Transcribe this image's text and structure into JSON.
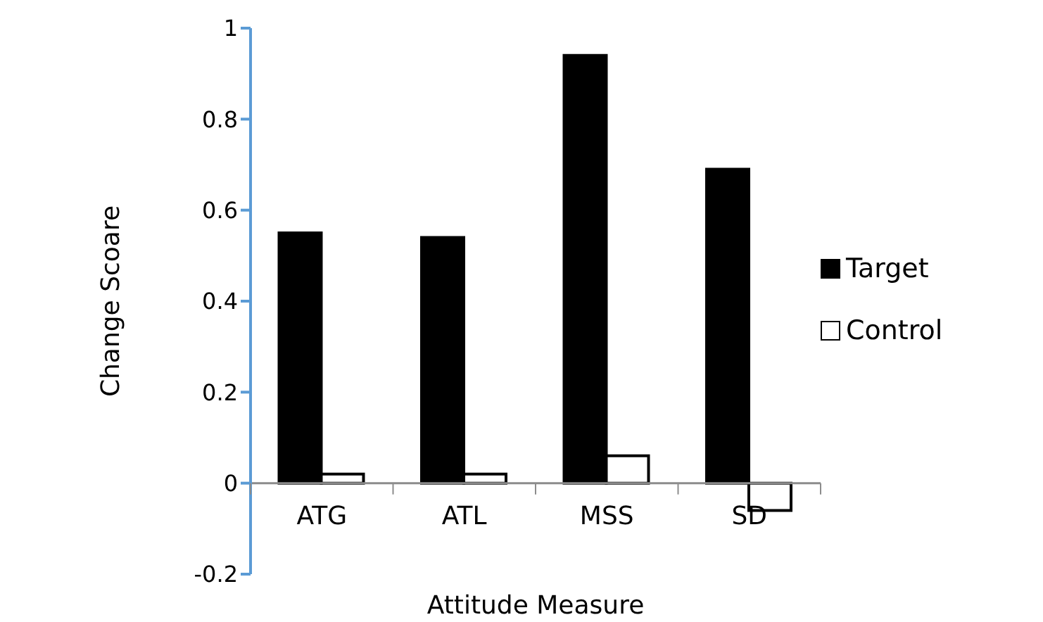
{
  "chart_data": {
    "type": "bar",
    "xlabel": "Attitude Measure",
    "ylabel": "Change Scoare",
    "categories": [
      "ATG",
      "ATL",
      "MSS",
      "SD"
    ],
    "series": [
      {
        "name": "Target",
        "color": "#000000",
        "values": [
          0.55,
          0.54,
          0.94,
          0.69
        ]
      },
      {
        "name": "Control",
        "color": "#ffffff",
        "values": [
          0.02,
          0.02,
          0.06,
          -0.06
        ]
      }
    ],
    "ylim": [
      -0.2,
      1
    ],
    "yticks": [
      -0.2,
      0,
      0.2,
      0.4,
      0.6,
      0.8,
      1
    ],
    "grid": false,
    "legend": "right"
  }
}
